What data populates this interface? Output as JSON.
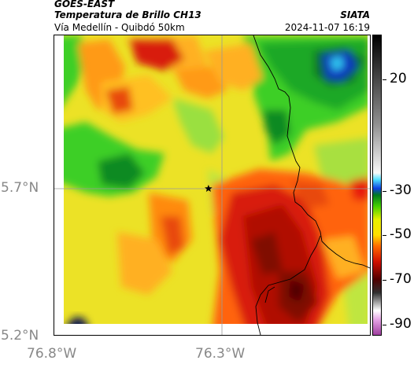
{
  "header": {
    "agency": "GOES-EAST",
    "product": "Temperatura de Brillo CH13",
    "region": "Vía Medellín - Quibdó 50km",
    "org": "SIATA",
    "datetime": "2024-11-07 16:19"
  },
  "map": {
    "lat_labels": [
      {
        "text": "5.7°N",
        "value": 5.7
      },
      {
        "text": "5.2°N",
        "value": 5.2
      }
    ],
    "lon_labels": [
      {
        "text": "76.8°W",
        "value": -76.8
      },
      {
        "text": "76.3°W",
        "value": -76.3
      }
    ],
    "gridline_color": "#9a9a9a",
    "marker": {
      "icon": "star-icon",
      "lat": 5.7,
      "lon": -76.34
    }
  },
  "colorbar": {
    "ticks": [
      {
        "label": "20",
        "value": 20
      },
      {
        "label": "-30",
        "value": -30
      },
      {
        "label": "-50",
        "value": -50
      },
      {
        "label": "-70",
        "value": -70
      },
      {
        "label": "-90",
        "value": -90
      }
    ],
    "min": -95,
    "max": 40,
    "stops": [
      {
        "value": -95,
        "color": "#a040a0"
      },
      {
        "value": -88,
        "color": "#e6a6e6"
      },
      {
        "value": -84,
        "color": "#ffffff"
      },
      {
        "value": -80,
        "color": "#999999"
      },
      {
        "value": -76,
        "color": "#303030"
      },
      {
        "value": -70,
        "color": "#500000"
      },
      {
        "value": -62,
        "color": "#d01000"
      },
      {
        "value": -55,
        "color": "#ff6a00"
      },
      {
        "value": -50,
        "color": "#ffe000"
      },
      {
        "value": -43,
        "color": "#e8f000"
      },
      {
        "value": -37,
        "color": "#44d000"
      },
      {
        "value": -32,
        "color": "#007a20"
      },
      {
        "value": -29,
        "color": "#1040e0"
      },
      {
        "value": -25,
        "color": "#50e0ff"
      },
      {
        "value": -22,
        "color": "#f8f8f8"
      },
      {
        "value": 0,
        "color": "#909090"
      },
      {
        "value": 40,
        "color": "#000000"
      }
    ]
  }
}
